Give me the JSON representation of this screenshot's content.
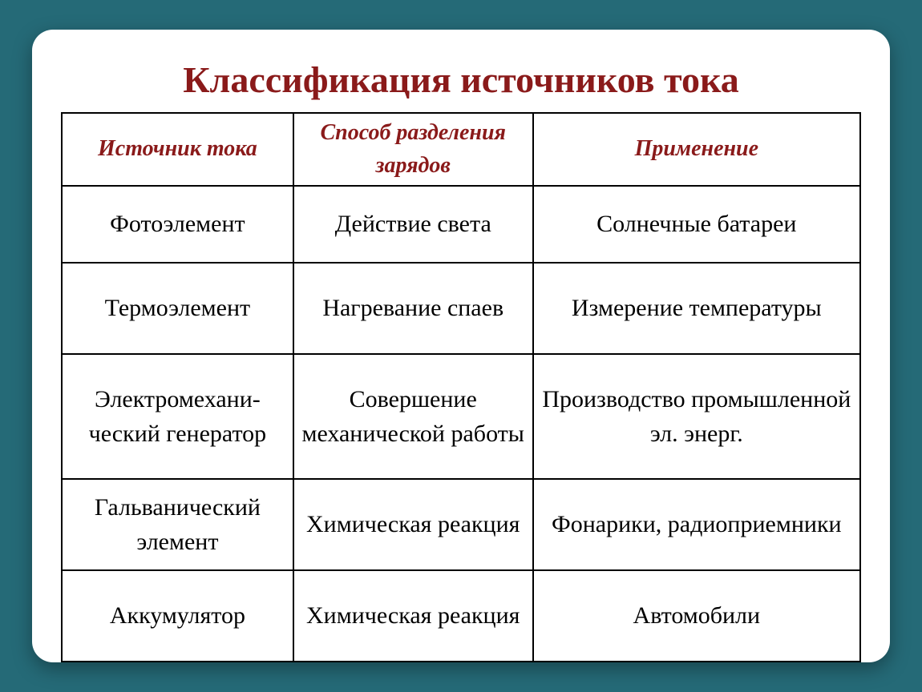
{
  "title": "Классификация источников тока",
  "table": {
    "type": "table",
    "border_color": "#000000",
    "header_text_color": "#8a1a1a",
    "title_color": "#8a1a1a",
    "body_text_color": "#000000",
    "background_color": "#ffffff",
    "page_background": "#256a77",
    "title_fontsize": 46,
    "header_fontsize": 28,
    "cell_fontsize": 30,
    "header_font_style": "italic bold",
    "col_widths_pct": [
      29,
      30,
      41
    ],
    "columns": [
      "Источник тока",
      "Способ разделения зарядов",
      "Применение"
    ],
    "rows": [
      {
        "source": "Фотоэлемент",
        "method": "Действие света",
        "use": "Солнечные батареи"
      },
      {
        "source": "Термоэлемент",
        "method": "Нагревание спаев",
        "use": "Измерение температуры"
      },
      {
        "source": "Электромехани-ческий генератор",
        "method": "Совершение механической работы",
        "use": "Производство промышленной эл. энерг."
      },
      {
        "source": "Гальванический элемент",
        "method": "Химическая реакция",
        "use": "Фонарики, радиоприемники"
      },
      {
        "source": "Аккумулятор",
        "method": "Химическая реакция",
        "use": "Автомобили"
      }
    ]
  }
}
